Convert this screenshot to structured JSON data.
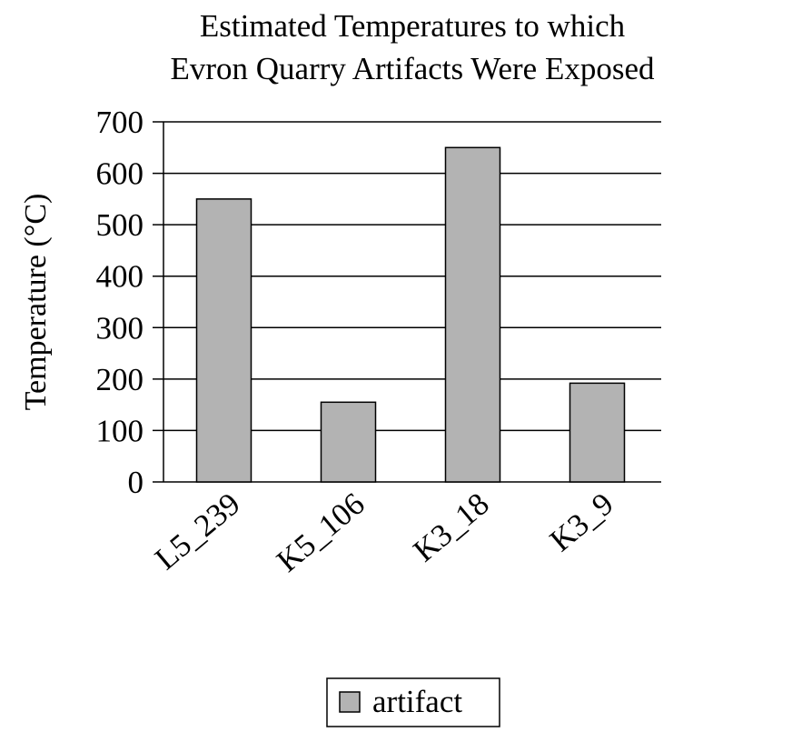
{
  "chart_data": {
    "type": "bar",
    "title": "Estimated Temperatures to which\nEvron Quarry Artifacts Were Exposed",
    "xlabel": "",
    "ylabel": "Temperature (°C)",
    "ylim": [
      0,
      700
    ],
    "yticks": [
      0,
      100,
      200,
      300,
      400,
      500,
      600,
      700
    ],
    "grid": true,
    "legend_position": "bottom-center",
    "categories": [
      "L5_239",
      "K5_106",
      "K3_18",
      "K3_9"
    ],
    "series": [
      {
        "name": "artifact",
        "values": [
          550,
          155,
          650,
          192
        ],
        "color": "#b3b3b3"
      }
    ]
  }
}
